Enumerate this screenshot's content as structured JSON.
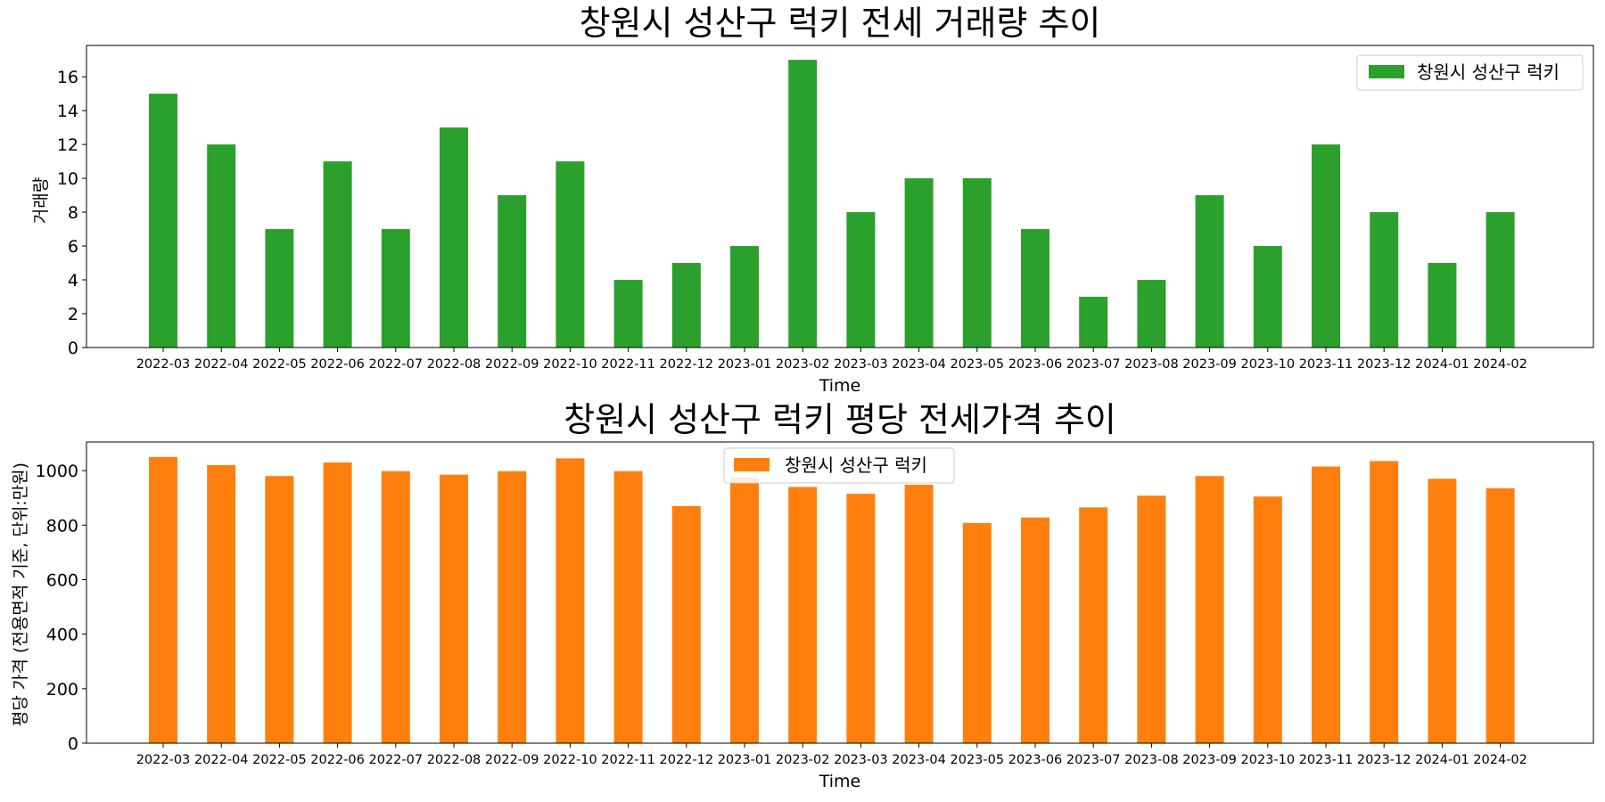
{
  "chart_data": [
    {
      "type": "bar",
      "title": "창원시 성산구 럭키 전세 거래량 추이",
      "xlabel": "Time",
      "ylabel": "거래량",
      "categories": [
        "2022-03",
        "2022-04",
        "2022-05",
        "2022-06",
        "2022-07",
        "2022-08",
        "2022-09",
        "2022-10",
        "2022-11",
        "2022-12",
        "2023-01",
        "2023-02",
        "2023-03",
        "2023-04",
        "2023-05",
        "2023-06",
        "2023-07",
        "2023-08",
        "2023-09",
        "2023-10",
        "2023-11",
        "2023-12",
        "2024-01",
        "2024-02"
      ],
      "series": [
        {
          "name": "창원시 성산구 럭키",
          "color": "#2ca02c",
          "values": [
            15,
            12,
            7,
            11,
            7,
            13,
            9,
            11,
            4,
            5,
            6,
            17,
            8,
            10,
            10,
            7,
            3,
            4,
            9,
            6,
            12,
            8,
            5,
            8
          ]
        }
      ],
      "ylim": [
        0,
        17.85
      ],
      "yticks": [
        0,
        2,
        4,
        6,
        8,
        10,
        12,
        14,
        16
      ],
      "legend_position": "upper right",
      "grid": false
    },
    {
      "type": "bar",
      "title": "창원시 성산구 럭키 평당 전세가격 추이",
      "xlabel": "Time",
      "ylabel": "평당 가격 (전용면적 기준, 단위:만원)",
      "categories": [
        "2022-03",
        "2022-04",
        "2022-05",
        "2022-06",
        "2022-07",
        "2022-08",
        "2022-09",
        "2022-10",
        "2022-11",
        "2022-12",
        "2023-01",
        "2023-02",
        "2023-03",
        "2023-04",
        "2023-05",
        "2023-06",
        "2023-07",
        "2023-08",
        "2023-09",
        "2023-10",
        "2023-11",
        "2023-12",
        "2024-01",
        "2024-02"
      ],
      "series": [
        {
          "name": "창원시 성산구 럭키",
          "color": "#ff7f0e",
          "values": [
            1050,
            1020,
            980,
            1030,
            998,
            985,
            998,
            1045,
            998,
            870,
            975,
            940,
            915,
            948,
            808,
            828,
            865,
            908,
            980,
            905,
            1015,
            1035,
            970,
            935
          ]
        }
      ],
      "ylim": [
        0,
        1105
      ],
      "yticks": [
        0,
        200,
        400,
        600,
        800,
        1000
      ],
      "legend_position": "upper center",
      "grid": false
    }
  ]
}
